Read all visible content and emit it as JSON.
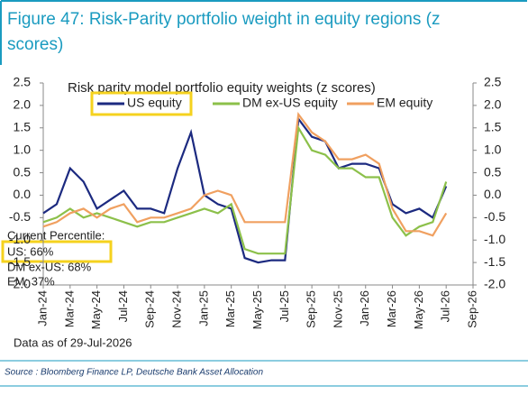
{
  "chart_data": {
    "type": "line",
    "header": [
      "Figure 47: Risk-Parity portfolio weight in equity regions (z",
      "scores)"
    ],
    "title": "Risk parity model portfolio equity weights (z scores)",
    "x": [
      "2024-01",
      "2024-02",
      "2024-03",
      "2024-04",
      "2024-05",
      "2024-06",
      "2024-07",
      "2024-08",
      "2024-09",
      "2024-10",
      "2024-11",
      "2024-12",
      "2025-01",
      "2025-02",
      "2025-03",
      "2025-04",
      "2025-05",
      "2025-06",
      "2025-07",
      "2025-08",
      "2025-09",
      "2025-10",
      "2025-11",
      "2025-12",
      "2026-01",
      "2026-02",
      "2026-03",
      "2026-04",
      "2026-05",
      "2026-06",
      "2026-07"
    ],
    "series": [
      {
        "name": "US equity",
        "color": "#1c2a80",
        "values": [
          -0.4,
          -0.2,
          0.6,
          0.3,
          -0.3,
          -0.1,
          0.1,
          -0.3,
          -0.3,
          -0.4,
          0.6,
          1.4,
          0.0,
          -0.2,
          -0.3,
          -1.4,
          -1.5,
          -1.45,
          -1.45,
          1.7,
          1.3,
          1.2,
          0.6,
          0.7,
          0.7,
          0.6,
          -0.2,
          -0.4,
          -0.3,
          -0.5,
          0.2
        ]
      },
      {
        "name": "DM ex-US equity",
        "color": "#8cc04a",
        "values": [
          -0.6,
          -0.5,
          -0.3,
          -0.5,
          -0.4,
          -0.5,
          -0.6,
          -0.7,
          -0.6,
          -0.6,
          -0.5,
          -0.4,
          -0.3,
          -0.4,
          -0.2,
          -1.2,
          -1.3,
          -1.3,
          -1.3,
          1.5,
          1.0,
          0.9,
          0.6,
          0.6,
          0.4,
          0.4,
          -0.5,
          -0.9,
          -0.7,
          -0.6,
          0.3
        ]
      },
      {
        "name": "EM equity",
        "color": "#f0a060",
        "values": [
          -0.7,
          -0.6,
          -0.4,
          -0.3,
          -0.5,
          -0.3,
          -0.2,
          -0.6,
          -0.5,
          -0.5,
          -0.4,
          -0.3,
          0.0,
          0.1,
          0.0,
          -0.6,
          -0.6,
          -0.6,
          -0.6,
          1.8,
          1.4,
          1.2,
          0.8,
          0.8,
          0.9,
          0.7,
          -0.3,
          -0.8,
          -0.8,
          -0.9,
          -0.4
        ]
      }
    ],
    "xlim": [
      "2024-01",
      "2026-09"
    ],
    "xticks": [
      {
        "value": "2024-01",
        "label": "Jan-24"
      },
      {
        "value": "2024-03",
        "label": "Mar-24"
      },
      {
        "value": "2024-05",
        "label": "May-24"
      },
      {
        "value": "2024-07",
        "label": "Jul-24"
      },
      {
        "value": "2024-09",
        "label": "Sep-24"
      },
      {
        "value": "2024-11",
        "label": "Nov-24"
      },
      {
        "value": "2025-01",
        "label": "Jan-25"
      },
      {
        "value": "2025-03",
        "label": "Mar-25"
      },
      {
        "value": "2025-05",
        "label": "May-25"
      },
      {
        "value": "2025-07",
        "label": "Jul-25"
      },
      {
        "value": "2025-09",
        "label": "Sep-25"
      },
      {
        "value": "2025-11",
        "label": "Nov-25"
      },
      {
        "value": "2026-01",
        "label": "Jan-26"
      },
      {
        "value": "2026-03",
        "label": "Mar-26"
      },
      {
        "value": "2026-05",
        "label": "May-26"
      },
      {
        "value": "2026-07",
        "label": "Jul-26"
      },
      {
        "value": "2026-09",
        "label": "Sep-26"
      }
    ],
    "ylim": [
      -2,
      2.5
    ],
    "yticks": [
      2.5,
      {
        "value": 2,
        "label": "2.0"
      },
      1.5,
      {
        "value": 1,
        "label": "1.0"
      },
      0.5,
      {
        "value": 0,
        "label": "0.0"
      },
      -0.5,
      {
        "value": -1,
        "label": "-1.0"
      },
      -1.5,
      {
        "value": -2,
        "label": "-2.0"
      }
    ],
    "y2lim": [
      -2,
      2.5
    ],
    "y2ticks": [
      2.5,
      {
        "value": 2,
        "label": "2.0"
      },
      1.5,
      {
        "value": 1,
        "label": "1.0"
      },
      0.5,
      {
        "value": 0,
        "label": "0.0"
      },
      -0.5,
      {
        "value": -1,
        "label": "-1.0"
      },
      -1.5,
      {
        "value": -2,
        "label": "-2.0"
      }
    ],
    "annotations": [
      "Current Percentile:",
      "US: 66%",
      "DM ex-US: 68%",
      "EM: 37%"
    ],
    "note": "Data as of 29-Jul-2026",
    "source": "Source : Bloomberg Finance LP, Deutsche Bank Asset Allocation"
  }
}
